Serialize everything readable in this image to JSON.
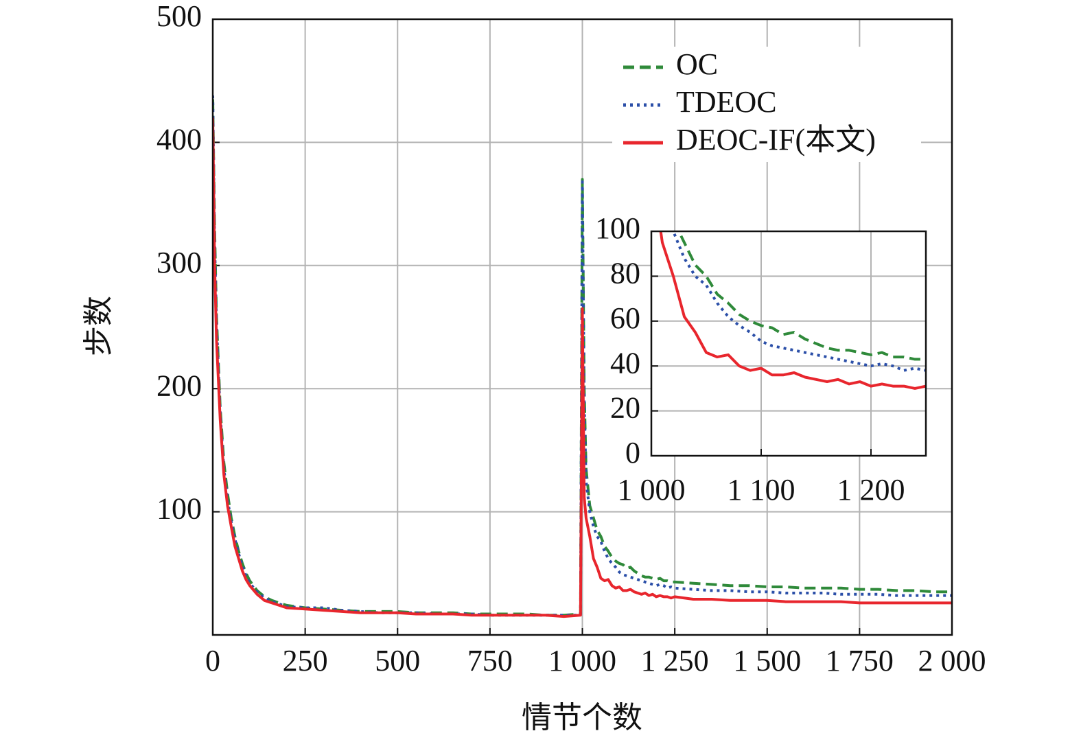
{
  "chart_data": {
    "type": "line",
    "xlabel": "情节个数",
    "ylabel": "步数",
    "xlim": [
      0,
      2000
    ],
    "ylim": [
      0,
      500
    ],
    "xticks": [
      0,
      250,
      500,
      750,
      {
        "value": 1000,
        "label": "1 000"
      },
      {
        "value": 1250,
        "label": "1 250"
      },
      {
        "value": 1500,
        "label": "1 500"
      },
      {
        "value": 1750,
        "label": "1 750"
      },
      {
        "value": 2000,
        "label": "2 000"
      }
    ],
    "yticks": [
      100,
      200,
      300,
      400,
      500
    ],
    "grid": true,
    "legend": "upper right",
    "x": [
      0,
      5,
      10,
      20,
      30,
      40,
      50,
      60,
      70,
      80,
      90,
      100,
      120,
      140,
      160,
      180,
      200,
      250,
      300,
      350,
      400,
      450,
      500,
      550,
      600,
      650,
      700,
      750,
      800,
      850,
      900,
      950,
      995,
      1000,
      1005,
      1010,
      1020,
      1030,
      1040,
      1050,
      1060,
      1070,
      1080,
      1090,
      1100,
      1110,
      1120,
      1130,
      1140,
      1150,
      1160,
      1170,
      1180,
      1190,
      1200,
      1210,
      1220,
      1230,
      1240,
      1250,
      1300,
      1350,
      1400,
      1450,
      1500,
      1550,
      1600,
      1650,
      1700,
      1750,
      1800,
      1850,
      1900,
      1950,
      2000
    ],
    "series": [
      {
        "name": "OC",
        "color": "#2f8a3a",
        "linestyle": "dashed",
        "values": [
          435,
          330,
          260,
          185,
          140,
          115,
          95,
          80,
          68,
          58,
          50,
          44,
          36,
          31,
          28,
          26,
          24,
          22,
          21,
          20,
          19,
          19,
          19,
          18,
          18,
          18,
          17,
          17,
          17,
          17,
          16,
          16,
          17,
          370,
          200,
          135,
          105,
          95,
          85,
          80,
          72,
          68,
          63,
          60,
          58,
          57,
          54,
          55,
          52,
          50,
          48,
          47,
          47,
          46,
          45,
          46,
          44,
          44,
          43,
          43,
          42,
          41,
          40,
          40,
          39,
          39,
          38,
          38,
          38,
          37,
          37,
          36,
          36,
          35,
          35
        ]
      },
      {
        "name": "TDEOC",
        "color": "#2b4fa8",
        "linestyle": "dotted",
        "values": [
          438,
          320,
          255,
          180,
          135,
          110,
          92,
          78,
          66,
          56,
          48,
          42,
          35,
          30,
          27,
          25,
          23,
          22,
          22,
          20,
          19,
          18,
          18,
          18,
          17,
          17,
          17,
          16,
          16,
          16,
          16,
          16,
          16,
          368,
          190,
          125,
          100,
          88,
          80,
          76,
          68,
          62,
          58,
          55,
          51,
          49,
          48,
          47,
          46,
          45,
          44,
          43,
          42,
          41,
          40,
          41,
          40,
          38,
          39,
          38,
          37,
          36,
          36,
          35,
          35,
          34,
          34,
          34,
          33,
          33,
          33,
          32,
          32,
          32,
          32
        ]
      },
      {
        "name": "DEOC-IF(本文)",
        "color": "#e8262d",
        "linestyle": "solid",
        "values": [
          420,
          300,
          240,
          175,
          130,
          105,
          88,
          72,
          62,
          52,
          45,
          40,
          33,
          28,
          26,
          24,
          22,
          21,
          20,
          19,
          18,
          18,
          18,
          17,
          17,
          17,
          16,
          16,
          16,
          16,
          16,
          15,
          16,
          265,
          112,
          95,
          80,
          62,
          55,
          46,
          44,
          45,
          40,
          38,
          39,
          36,
          36,
          37,
          35,
          34,
          33,
          34,
          32,
          33,
          31,
          32,
          31,
          31,
          30,
          31,
          29,
          29,
          28,
          28,
          28,
          27,
          27,
          27,
          27,
          26,
          26,
          26,
          26,
          26,
          26
        ]
      }
    ],
    "inset": {
      "xlim": [
        1000,
        1250
      ],
      "ylim": [
        0,
        100
      ],
      "xticks": [
        {
          "value": 1000,
          "label": "1 000"
        },
        {
          "value": 1100,
          "label": "1 100"
        },
        {
          "value": 1200,
          "label": "1 200"
        }
      ],
      "yticks": [
        0,
        20,
        40,
        60,
        80,
        100
      ]
    }
  }
}
